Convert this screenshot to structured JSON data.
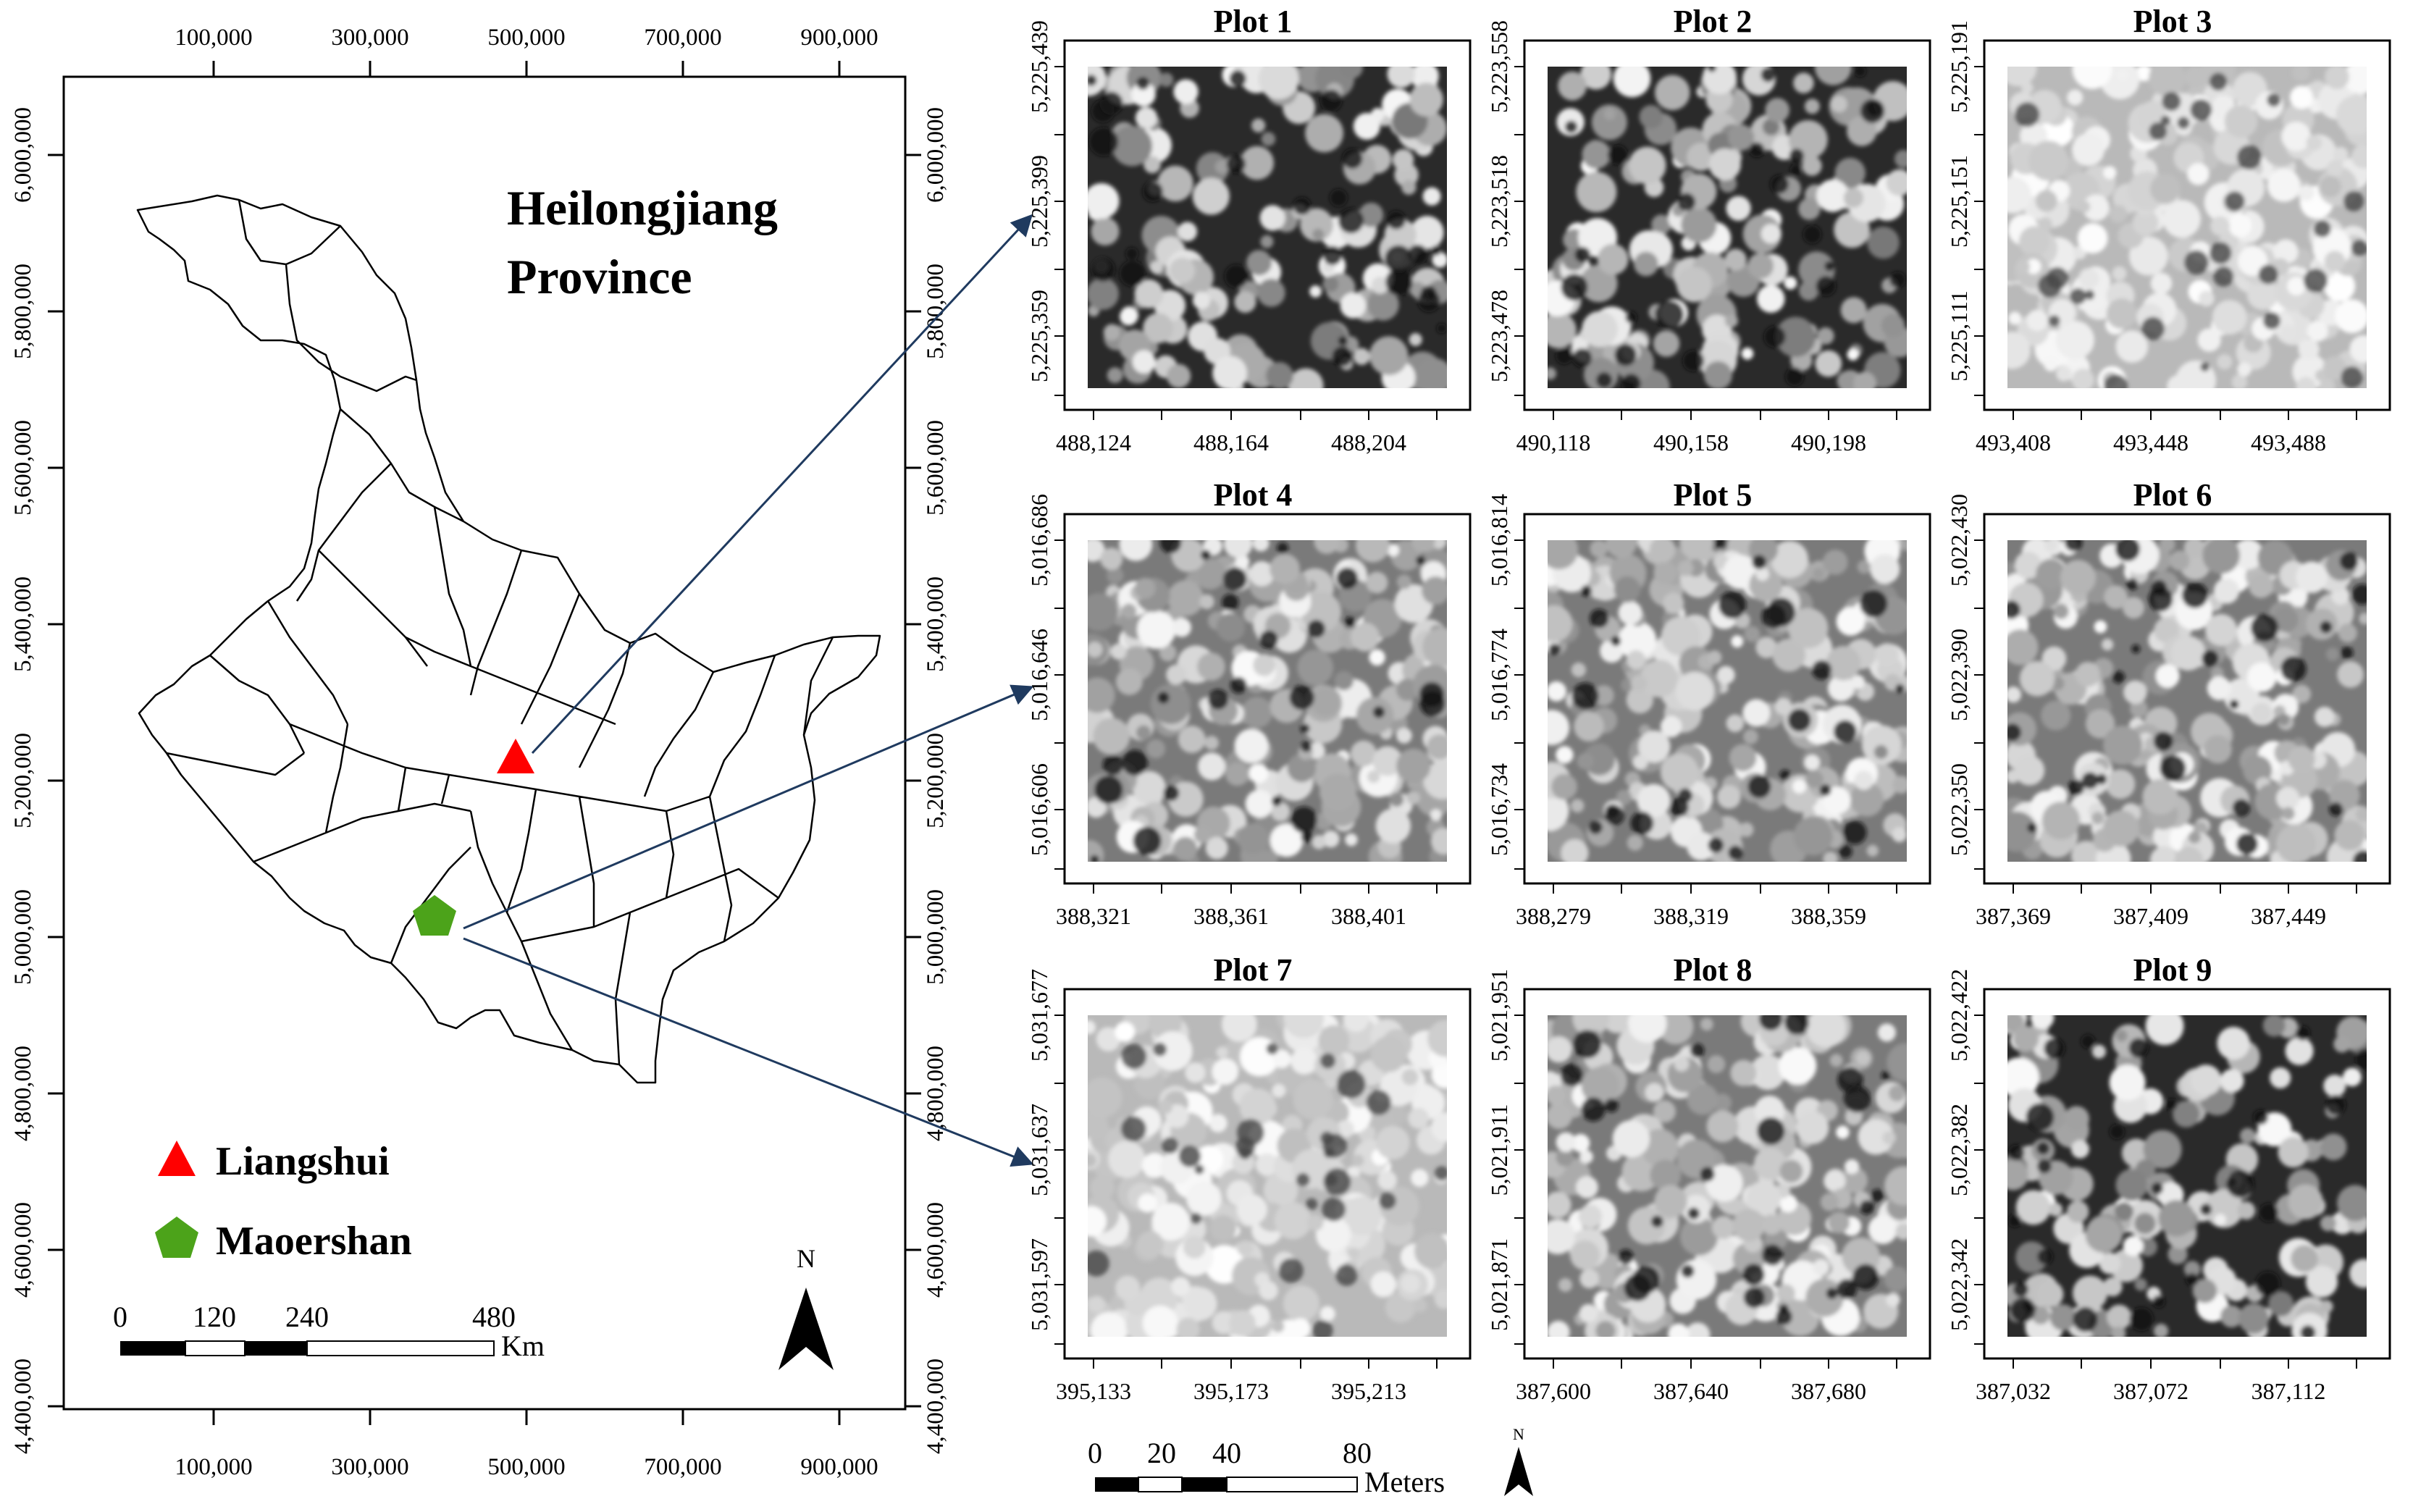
{
  "province_map": {
    "title_line1": "Heilongjiang",
    "title_line2": "Province",
    "x_ticks": [
      "100,000",
      "300,000",
      "500,000",
      "700,000",
      "900,000"
    ],
    "y_ticks": [
      "6,000,000",
      "5,800,000",
      "5,600,000",
      "5,400,000",
      "5,200,000",
      "5,000,000",
      "4,800,000",
      "4,600,000",
      "4,400,000"
    ],
    "legend": [
      {
        "label": "Liangshui",
        "symbol": "triangle",
        "color": "#ff0000"
      },
      {
        "label": "Maoershan",
        "symbol": "pentagon",
        "color": "#4ca31a"
      }
    ],
    "scalebar": {
      "ticks": [
        "0",
        "120",
        "240",
        "480"
      ],
      "unit": "Km"
    },
    "north_label": "N"
  },
  "plots": [
    {
      "title": "Plot 1",
      "x_ticks": [
        "488,124",
        "488,164",
        "488,204"
      ],
      "y_ticks": [
        "5,225,439",
        "5,225,399",
        "5,225,359"
      ],
      "tone": "dark"
    },
    {
      "title": "Plot 2",
      "x_ticks": [
        "490,118",
        "490,158",
        "490,198"
      ],
      "y_ticks": [
        "5,223,558",
        "5,223,518",
        "5,223,478"
      ],
      "tone": "dark"
    },
    {
      "title": "Plot 3",
      "x_ticks": [
        "493,408",
        "493,448",
        "493,488"
      ],
      "y_ticks": [
        "5,225,191",
        "5,225,151",
        "5,225,111"
      ],
      "tone": "light"
    },
    {
      "title": "Plot 4",
      "x_ticks": [
        "388,321",
        "388,361",
        "388,401"
      ],
      "y_ticks": [
        "5,016,686",
        "5,016,646",
        "5,016,606"
      ],
      "tone": "mid"
    },
    {
      "title": "Plot 5",
      "x_ticks": [
        "388,279",
        "388,319",
        "388,359"
      ],
      "y_ticks": [
        "5,016,814",
        "5,016,774",
        "5,016,734"
      ],
      "tone": "mid"
    },
    {
      "title": "Plot 6",
      "x_ticks": [
        "387,369",
        "387,409",
        "387,449"
      ],
      "y_ticks": [
        "5,022,430",
        "5,022,390",
        "5,022,350"
      ],
      "tone": "mid"
    },
    {
      "title": "Plot 7",
      "x_ticks": [
        "395,133",
        "395,173",
        "395,213"
      ],
      "y_ticks": [
        "5,031,677",
        "5,031,637",
        "5,031,597"
      ],
      "tone": "light"
    },
    {
      "title": "Plot 8",
      "x_ticks": [
        "387,600",
        "387,640",
        "387,680"
      ],
      "y_ticks": [
        "5,021,951",
        "5,021,911",
        "5,021,871"
      ],
      "tone": "mid"
    },
    {
      "title": "Plot 9",
      "x_ticks": [
        "387,032",
        "387,072",
        "387,112"
      ],
      "y_ticks": [
        "5,022,422",
        "5,022,382",
        "5,022,342"
      ],
      "tone": "dark"
    }
  ],
  "plots_scalebar": {
    "ticks": [
      "0",
      "20",
      "40",
      "80"
    ],
    "unit": "Meters"
  },
  "plots_north_label": "N",
  "colors": {
    "frame": "#000000",
    "arrow": "#1f3a5f",
    "liangshui": "#ff0000",
    "maoershan": "#4ca31a"
  }
}
